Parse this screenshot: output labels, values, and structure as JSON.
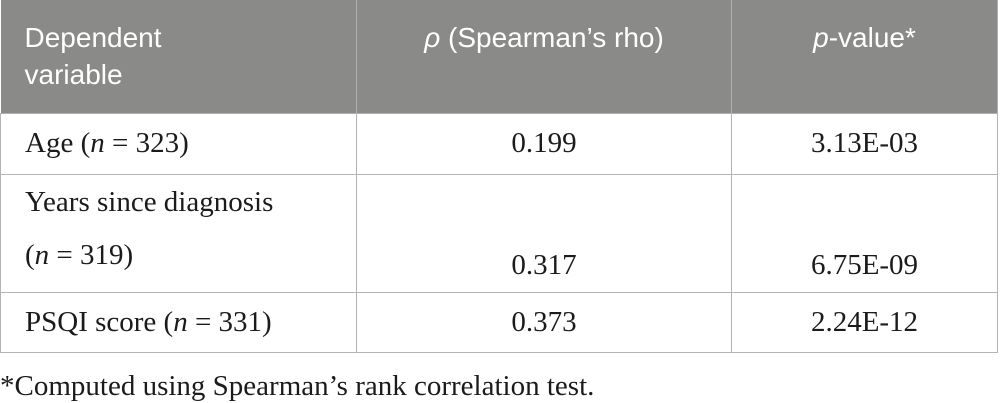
{
  "colors": {
    "header_bg": "#8a8a88",
    "header_text": "#ffffff",
    "body_text": "#1b1b1b",
    "border": "#b5b3b3",
    "page_bg": "#ffffff"
  },
  "header": {
    "col1_line1": "Dependent",
    "col1_line2": "variable",
    "col2_symbol": "ρ",
    "col2_rest": " (Spearman’s rho)",
    "col3_symbol": "p",
    "col3_rest": "-value*"
  },
  "rows": [
    {
      "label": [
        "Age (",
        "n",
        " = 323)"
      ],
      "rho": "0.199",
      "p_value": "3.13E-03"
    },
    {
      "label_line1": "Years since diagnosis",
      "label_line2": [
        "(",
        "n",
        " = 319)"
      ],
      "rho": "0.317",
      "p_value": "6.75E-09"
    },
    {
      "label": [
        "PSQI score (",
        "n",
        " = 331)"
      ],
      "rho": "0.373",
      "p_value": "2.24E-12"
    }
  ],
  "footnote": "*Computed using Spearman’s rank correlation test."
}
